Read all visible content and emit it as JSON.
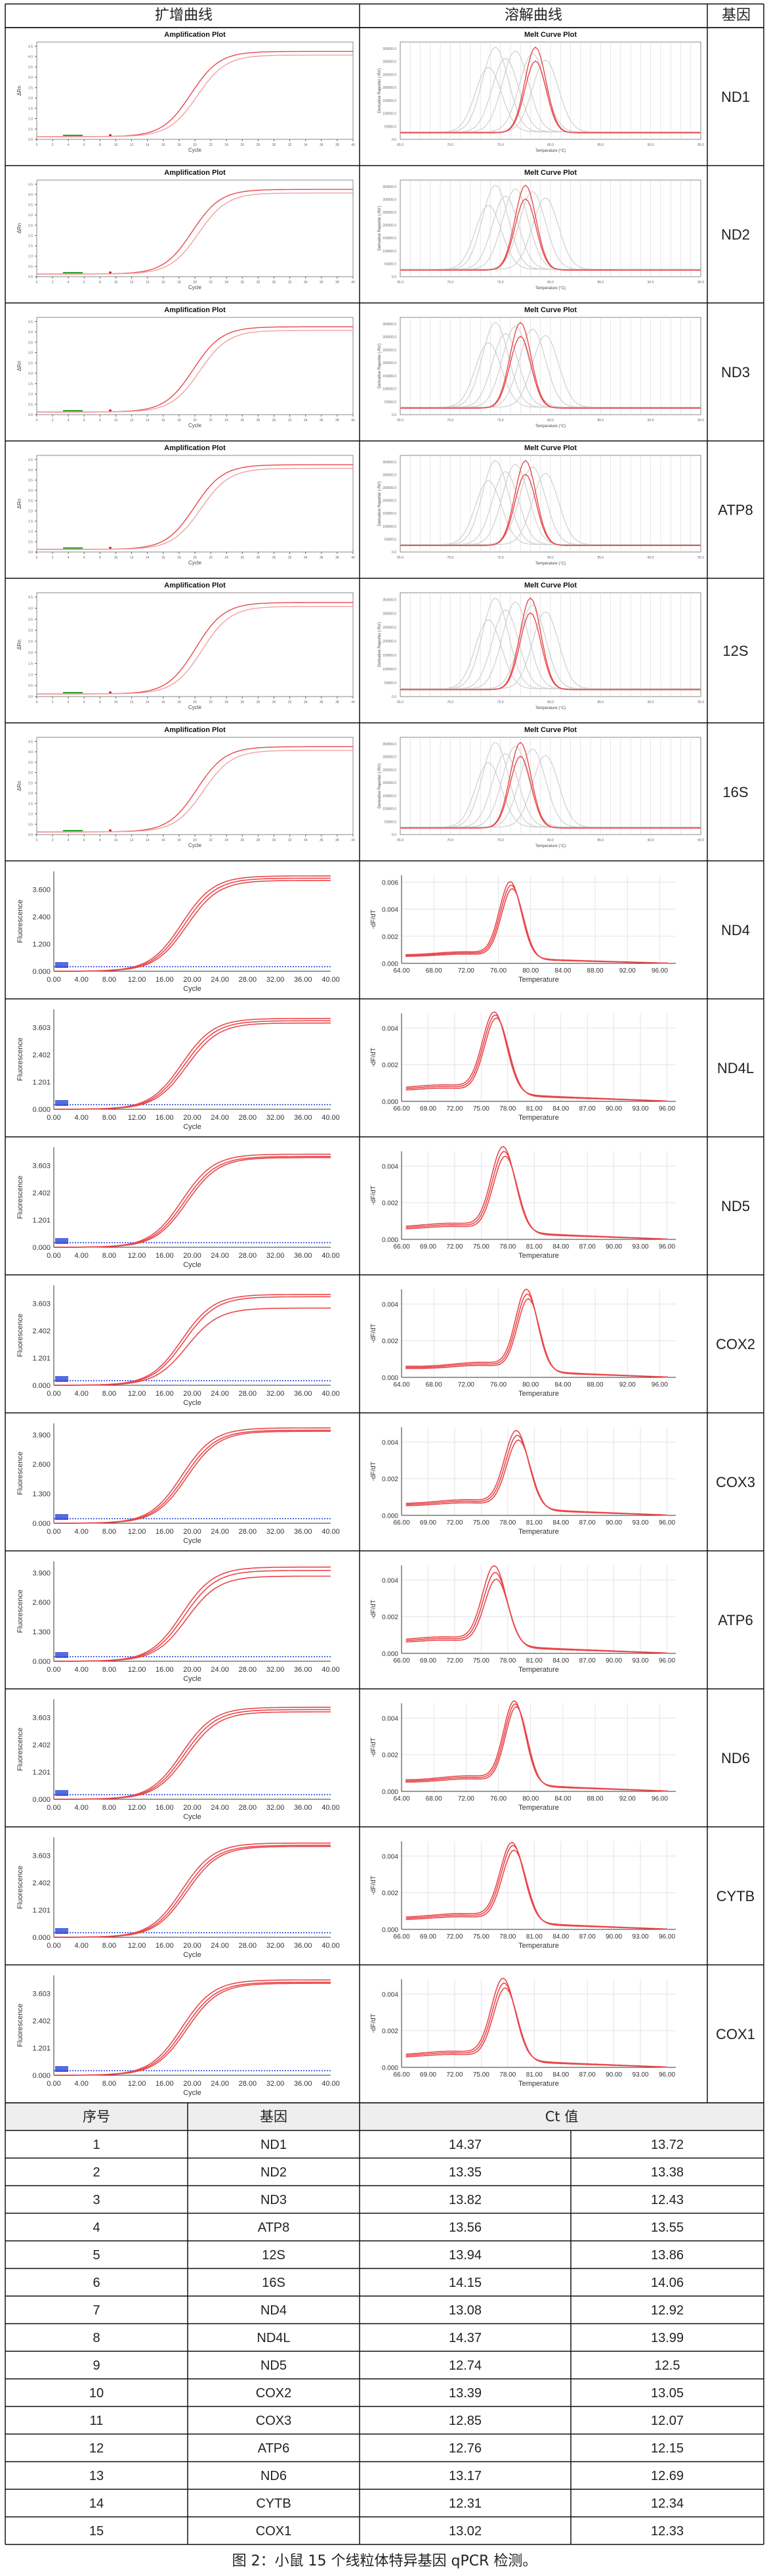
{
  "header": {
    "amp_title": "扩增曲线",
    "melt_title": "溶解曲线",
    "gene_title": "基因"
  },
  "panel_text": {
    "amp_plot_title": "Amplification Plot",
    "melt_plot_title": "Melt Curve Plot",
    "cycle_label": "Cycle",
    "drn_label": "ΔRn",
    "deriv_label": "Derivative Reporter (-Rn')",
    "temp_label": "Temperature (°C)",
    "fluor_label": "Fluorescence",
    "dfdt_label": "-dF/dT",
    "temperature_label": "Temperature",
    "amp_ticks": [
      "0.00",
      "4.00",
      "8.00",
      "12.00",
      "16.00",
      "20.00",
      "24.00",
      "28.00",
      "32.00",
      "36.00",
      "40.00"
    ]
  },
  "chart_data": [
    {
      "gene": "ND1",
      "type": "line",
      "style": "instrument",
      "xlabel": "Cycle",
      "ylabel": "ΔRn",
      "melt_peak": 78.5
    },
    {
      "gene": "ND2",
      "type": "line",
      "style": "instrument",
      "xlabel": "Cycle",
      "ylabel": "ΔRn",
      "melt_peak": 77.5
    },
    {
      "gene": "ND3",
      "type": "line",
      "style": "instrument",
      "xlabel": "Cycle",
      "ylabel": "ΔRn",
      "melt_peak": 77.0
    },
    {
      "gene": "ATP8",
      "type": "line",
      "style": "instrument",
      "xlabel": "Cycle",
      "ylabel": "ΔRn",
      "melt_peak": 77.5
    },
    {
      "gene": "12S",
      "type": "line",
      "style": "instrument",
      "xlabel": "Cycle",
      "ylabel": "ΔRn",
      "melt_peak": 78.0
    },
    {
      "gene": "16S",
      "type": "line",
      "style": "instrument",
      "xlabel": "Cycle",
      "ylabel": "ΔRn",
      "melt_peak": 77.0
    },
    {
      "gene": "ND4",
      "type": "line",
      "style": "software",
      "xlabel": "Cycle",
      "ylabel": "Fluorescence",
      "ymax": "3.600",
      "yticks": [
        "0.000",
        "1.200",
        "2.400",
        "3.600"
      ],
      "ylim": [
        0,
        4.4
      ],
      "plateau": [
        4.2,
        4.1,
        4.0
      ],
      "melt_xticks": [
        "64.00",
        "68.00",
        "72.00",
        "76.00",
        "80.00",
        "84.00",
        "88.00",
        "92.00",
        "96.00"
      ],
      "melt_xlim": [
        64,
        98
      ],
      "melt_peak": 77.5,
      "melt_yticks": [
        "0.000",
        "0.002",
        "0.004",
        "0.006"
      ],
      "melt_ylim": [
        0,
        0.0065
      ],
      "melt_height": [
        0.0055,
        0.0053,
        0.0051
      ]
    },
    {
      "gene": "ND4L",
      "type": "line",
      "style": "software",
      "xlabel": "Cycle",
      "ylabel": "Fluorescence",
      "ymax": "3.603",
      "yticks": [
        "0.000",
        "1.201",
        "2.402",
        "3.603"
      ],
      "ylim": [
        0,
        4.4
      ],
      "plateau": [
        4.0,
        3.9,
        3.8
      ],
      "melt_xticks": [
        "66.00",
        "69.00",
        "72.00",
        "75.00",
        "78.00",
        "81.00",
        "84.00",
        "87.00",
        "90.00",
        "93.00",
        "96.00"
      ],
      "melt_xlim": [
        66,
        97
      ],
      "melt_peak": 76.5,
      "melt_yticks": [
        "0.000",
        "0.002",
        "0.004"
      ],
      "melt_ylim": [
        0,
        0.0048
      ],
      "melt_height": [
        0.0043,
        0.0042,
        0.0041
      ]
    },
    {
      "gene": "ND5",
      "type": "line",
      "style": "software",
      "xlabel": "Cycle",
      "ylabel": "Fluorescence",
      "ymax": "3.603",
      "yticks": [
        "0.000",
        "1.201",
        "2.402",
        "3.603"
      ],
      "ylim": [
        0,
        4.4
      ],
      "plateau": [
        4.1,
        4.0,
        3.95
      ],
      "melt_xticks": [
        "66.00",
        "69.00",
        "72.00",
        "75.00",
        "78.00",
        "81.00",
        "84.00",
        "87.00",
        "90.00",
        "93.00",
        "96.00"
      ],
      "melt_xlim": [
        66,
        97
      ],
      "melt_peak": 77.5,
      "melt_yticks": [
        "0.000",
        "0.002",
        "0.004"
      ],
      "melt_ylim": [
        0,
        0.0048
      ],
      "melt_height": [
        0.0045,
        0.0043,
        0.0041
      ]
    },
    {
      "gene": "COX2",
      "type": "line",
      "style": "software",
      "xlabel": "Cycle",
      "ylabel": "Fluorescence",
      "ymax": "3.603",
      "yticks": [
        "0.000",
        "1.201",
        "2.402",
        "3.603"
      ],
      "ylim": [
        0,
        4.4
      ],
      "plateau": [
        4.0,
        3.9,
        3.4
      ],
      "melt_xticks": [
        "64.00",
        "68.00",
        "72.00",
        "76.00",
        "80.00",
        "84.00",
        "88.00",
        "92.00",
        "96.00"
      ],
      "melt_xlim": [
        64,
        98
      ],
      "melt_peak": 79.5,
      "melt_yticks": [
        "0.000",
        "0.002",
        "0.004"
      ],
      "melt_ylim": [
        0,
        0.0048
      ],
      "melt_height": [
        0.0043,
        0.0041,
        0.0039
      ]
    },
    {
      "gene": "COX3",
      "type": "line",
      "style": "software",
      "xlabel": "Cycle",
      "ylabel": "Fluorescence",
      "ymax": "3.900",
      "yticks": [
        "0.000",
        "1.300",
        "2.600",
        "3.900"
      ],
      "ylim": [
        0,
        4.4
      ],
      "plateau": [
        4.2,
        4.1,
        4.05
      ],
      "melt_xticks": [
        "66.00",
        "69.00",
        "72.00",
        "75.00",
        "78.00",
        "81.00",
        "84.00",
        "87.00",
        "90.00",
        "93.00",
        "96.00"
      ],
      "melt_xlim": [
        66,
        97
      ],
      "melt_peak": 79.0,
      "melt_yticks": [
        "0.000",
        "0.002",
        "0.004"
      ],
      "melt_ylim": [
        0,
        0.0048
      ],
      "melt_height": [
        0.0041,
        0.0039,
        0.0037
      ]
    },
    {
      "gene": "ATP6",
      "type": "line",
      "style": "software",
      "xlabel": "Cycle",
      "ylabel": "Fluorescence",
      "ymax": "3.900",
      "yticks": [
        "0.000",
        "1.300",
        "2.600",
        "3.900"
      ],
      "ylim": [
        0,
        4.4
      ],
      "plateau": [
        4.15,
        4.0,
        3.75
      ],
      "melt_xticks": [
        "66.00",
        "69.00",
        "72.00",
        "75.00",
        "78.00",
        "81.00",
        "84.00",
        "87.00",
        "90.00",
        "93.00",
        "96.00"
      ],
      "melt_xlim": [
        66,
        97
      ],
      "melt_peak": 76.5,
      "melt_yticks": [
        "0.000",
        "0.002",
        "0.004"
      ],
      "melt_ylim": [
        0,
        0.0048
      ],
      "melt_height": [
        0.0042,
        0.0039,
        0.0036
      ]
    },
    {
      "gene": "ND6",
      "type": "line",
      "style": "software",
      "xlabel": "Cycle",
      "ylabel": "Fluorescence",
      "ymax": "3.603",
      "yticks": [
        "0.000",
        "1.201",
        "2.402",
        "3.603"
      ],
      "ylim": [
        0,
        4.4
      ],
      "plateau": [
        4.05,
        3.95,
        3.85
      ],
      "melt_xticks": [
        "64.00",
        "68.00",
        "72.00",
        "76.00",
        "80.00",
        "84.00",
        "88.00",
        "92.00",
        "96.00"
      ],
      "melt_xlim": [
        64,
        98
      ],
      "melt_peak": 78.0,
      "melt_yticks": [
        "0.000",
        "0.002",
        "0.004"
      ],
      "melt_ylim": [
        0,
        0.0048
      ],
      "melt_height": [
        0.0044,
        0.0043,
        0.0042
      ]
    },
    {
      "gene": "CYTB",
      "type": "line",
      "style": "software",
      "xlabel": "Cycle",
      "ylabel": "Fluorescence",
      "ymax": "3.603",
      "yticks": [
        "0.000",
        "1.201",
        "2.402",
        "3.603"
      ],
      "ylim": [
        0,
        4.4
      ],
      "plateau": [
        4.15,
        4.05,
        4.0
      ],
      "melt_xticks": [
        "66.00",
        "69.00",
        "72.00",
        "75.00",
        "78.00",
        "81.00",
        "84.00",
        "87.00",
        "90.00",
        "93.00",
        "96.00"
      ],
      "melt_xlim": [
        66,
        97
      ],
      "melt_peak": 78.5,
      "melt_yticks": [
        "0.000",
        "0.002",
        "0.004"
      ],
      "melt_ylim": [
        0,
        0.0048
      ],
      "melt_height": [
        0.0042,
        0.0041,
        0.0039
      ]
    },
    {
      "gene": "COX1",
      "type": "line",
      "style": "software",
      "xlabel": "Cycle",
      "ylabel": "Fluorescence",
      "ymax": "3.603",
      "yticks": [
        "0.000",
        "1.201",
        "2.402",
        "3.603"
      ],
      "ylim": [
        0,
        4.4
      ],
      "plateau": [
        4.2,
        4.1,
        4.05
      ],
      "melt_xticks": [
        "66.00",
        "69.00",
        "72.00",
        "75.00",
        "78.00",
        "81.00",
        "84.00",
        "87.00",
        "90.00",
        "93.00",
        "96.00"
      ],
      "melt_xlim": [
        66,
        97
      ],
      "melt_peak": 77.5,
      "melt_yticks": [
        "0.000",
        "0.002",
        "0.004"
      ],
      "melt_ylim": [
        0,
        0.0048
      ],
      "melt_height": [
        0.0043,
        0.0041,
        0.0039
      ]
    }
  ],
  "ct_table": {
    "headers": [
      "序号",
      "基因",
      "Ct 值"
    ],
    "rows": [
      [
        "1",
        "ND1",
        "14.37",
        "13.72"
      ],
      [
        "2",
        "ND2",
        "13.35",
        "13.38"
      ],
      [
        "3",
        "ND3",
        "13.82",
        "12.43"
      ],
      [
        "4",
        "ATP8",
        "13.56",
        "13.55"
      ],
      [
        "5",
        "12S",
        "13.94",
        "13.86"
      ],
      [
        "6",
        "16S",
        "14.15",
        "14.06"
      ],
      [
        "7",
        "ND4",
        "13.08",
        "12.92"
      ],
      [
        "8",
        "ND4L",
        "14.37",
        "13.99"
      ],
      [
        "9",
        "ND5",
        "12.74",
        "12.5"
      ],
      [
        "10",
        "COX2",
        "13.39",
        "13.05"
      ],
      [
        "11",
        "COX3",
        "12.85",
        "12.07"
      ],
      [
        "12",
        "ATP6",
        "12.76",
        "12.15"
      ],
      [
        "13",
        "ND6",
        "13.17",
        "12.69"
      ],
      [
        "14",
        "CYTB",
        "12.31",
        "12.34"
      ],
      [
        "15",
        "COX1",
        "13.02",
        "12.33"
      ]
    ]
  },
  "caption": "图 2：小鼠 15 个线粒体特异基因 qPCR 检测。",
  "colors": {
    "curve": "#e8474c",
    "curve_light": "#f0a0a3",
    "grey": "#cfcfcf",
    "baseline": "#1a3bd6",
    "grid": "#dddddd",
    "border": "#111111"
  }
}
